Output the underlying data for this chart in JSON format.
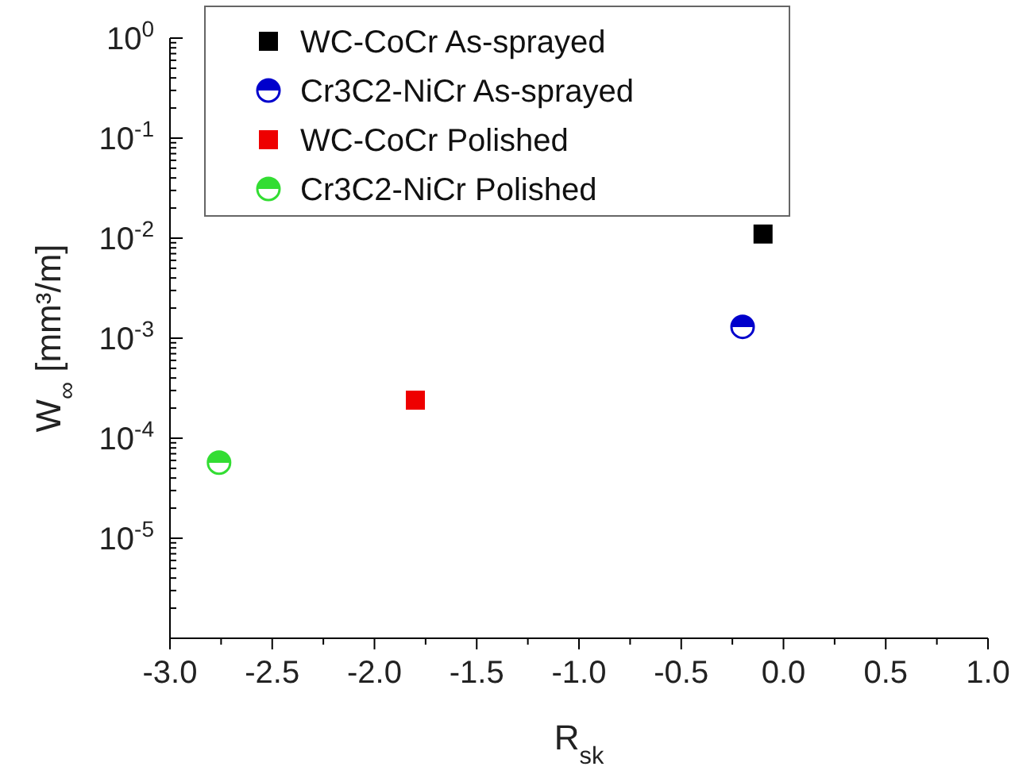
{
  "chart_data": {
    "type": "scatter",
    "xlabel": "R$_{sk}$",
    "ylabel": "W$_{∞}$ [mm³/m]",
    "log": "y",
    "grid": false,
    "legend": "top left",
    "xlim": [
      -3,
      1
    ],
    "xticks": [
      {
        "value": -3,
        "label": "-3.0"
      },
      {
        "value": -2.75,
        "label": null
      },
      {
        "value": -2.5,
        "label": "-2.5"
      },
      {
        "value": -2.25,
        "label": null
      },
      {
        "value": -2,
        "label": "-2.0"
      },
      {
        "value": -1.75,
        "label": null
      },
      {
        "value": -1.5,
        "label": "-1.5"
      },
      {
        "value": -1.25,
        "label": null
      },
      {
        "value": -1,
        "label": "-1.0"
      },
      {
        "value": -0.75,
        "label": null
      },
      {
        "value": -0.5,
        "label": "-0.5"
      },
      {
        "value": -0.25,
        "label": null
      },
      {
        "value": 0,
        "label": "0.0"
      },
      {
        "value": 0.25,
        "label": null
      },
      {
        "value": 0.5,
        "label": "0.5"
      },
      {
        "value": 0.75,
        "label": null
      },
      {
        "value": 1,
        "label": "1.0"
      }
    ],
    "ylim": [
      1e-06,
      1
    ],
    "yticks": [
      {
        "value": 1e-06,
        "label": null
      },
      {
        "value": 1e-05,
        "label": "10$^{-5}$"
      },
      {
        "value": 0.0001,
        "label": "10$^{-4}$"
      },
      {
        "value": 0.001,
        "label": "10$^{-3}$"
      },
      {
        "value": 0.01,
        "label": "10$^{-2}$"
      },
      {
        "value": 0.1,
        "label": "10$^{-1}$"
      },
      {
        "value": 1,
        "label": "10$^{0}$"
      }
    ],
    "series": [
      {
        "name": "WC-CoCr As-sprayed",
        "color": "#000000",
        "marker": "square",
        "x": [
          -0.1
        ],
        "values": [
          0.011
        ]
      },
      {
        "name": "Cr3C2-NiCr As-sprayed",
        "color": "#0000cc",
        "marker": "half-circle",
        "x": [
          -0.2
        ],
        "values": [
          0.0013
        ]
      },
      {
        "name": "WC-CoCr Polished",
        "color": "#ee0000",
        "marker": "square",
        "x": [
          -1.8
        ],
        "values": [
          0.00024
        ]
      },
      {
        "name": "Cr3C2-NiCr Polished",
        "color": "#33dd33",
        "marker": "half-circle",
        "x": [
          -2.76
        ],
        "values": [
          5.7e-05
        ]
      }
    ]
  }
}
